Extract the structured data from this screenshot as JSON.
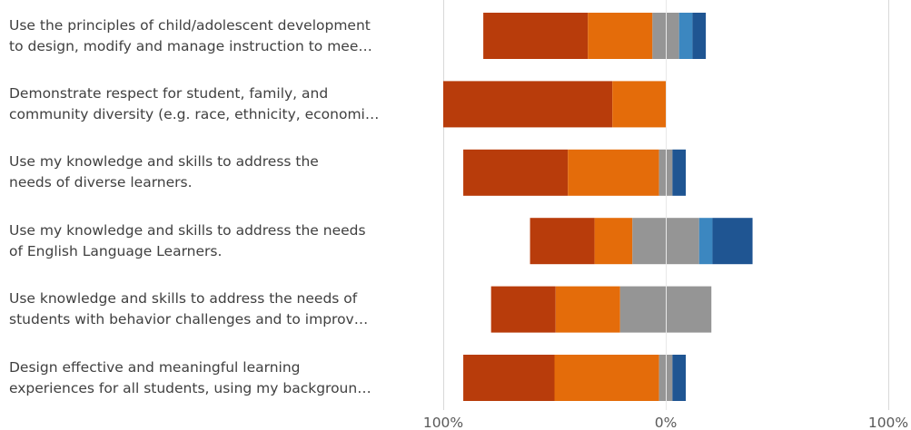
{
  "chart_data": {
    "type": "bar",
    "orientation": "horizontal",
    "stacked": "diverging",
    "categories": [
      [
        "Use the principles of child/adolescent development",
        "to design, modify and manage instruction to mee…"
      ],
      [
        "Demonstrate respect for student, family, and",
        "community diversity (e.g. race, ethnicity, economi…"
      ],
      [
        "Use my knowledge and skills to address the",
        "needs of diverse learners."
      ],
      [
        "Use my knowledge and skills to address the needs",
        "of English Language Learners."
      ],
      [
        "Use knowledge and skills to address the needs of",
        "students with behavior challenges and to improv…"
      ],
      [
        "Design effective and meaningful learning",
        "experiences for all students, using my backgroun…"
      ]
    ],
    "series": [
      {
        "color": "#b83c0b",
        "values": [
          47,
          76,
          47,
          29,
          29,
          41
        ]
      },
      {
        "color": "#e46c0a",
        "values": [
          29,
          24,
          41,
          17,
          29,
          47
        ]
      },
      {
        "color": "#959595",
        "values": [
          12,
          0,
          6,
          30,
          41,
          6
        ]
      },
      {
        "color": "#3c87c0",
        "values": [
          6,
          0,
          0,
          6,
          0,
          0
        ]
      },
      {
        "color": "#1f5592",
        "values": [
          6,
          0,
          6,
          18,
          0,
          6
        ]
      }
    ],
    "xlim": [
      -100,
      100
    ],
    "xticks": [
      {
        "value": -100,
        "label": "100%"
      },
      {
        "value": 0,
        "label": "0%"
      },
      {
        "value": 100,
        "label": "100%"
      }
    ],
    "grid": true,
    "legend": "none"
  }
}
